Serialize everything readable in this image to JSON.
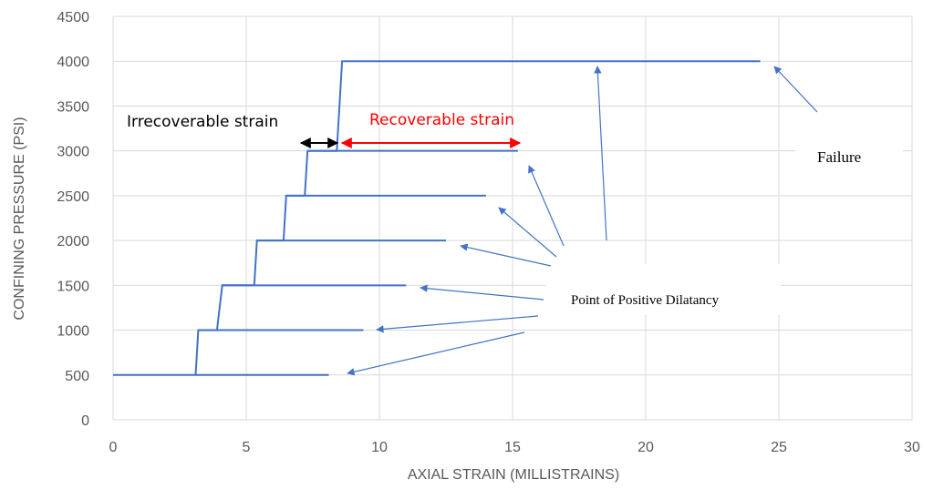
{
  "chart_data": {
    "type": "line",
    "xlabel": "AXIAL STRAIN (MILLISTRAINS)",
    "ylabel": "CONFINING PRESSURE (PSI)",
    "xlim": [
      0,
      30
    ],
    "ylim": [
      0,
      4500
    ],
    "xticks": [
      0,
      5,
      10,
      15,
      20,
      25,
      30
    ],
    "yticks": [
      0,
      500,
      1000,
      1500,
      2000,
      2500,
      3000,
      3500,
      4000,
      4500
    ],
    "grid": true,
    "series_color": "#4472C4",
    "series": [
      {
        "points": [
          [
            0,
            500
          ],
          [
            3.1,
            500
          ],
          [
            3.2,
            1000
          ],
          [
            3.9,
            1000
          ],
          [
            4.1,
            1500
          ],
          [
            5.3,
            1500
          ],
          [
            5.4,
            2000
          ],
          [
            6.4,
            2000
          ],
          [
            6.5,
            2500
          ],
          [
            7.2,
            2500
          ],
          [
            7.3,
            3000
          ],
          [
            8.4,
            3000
          ],
          [
            8.6,
            4000
          ],
          [
            24.3,
            4000
          ]
        ]
      }
    ],
    "unloading_branches": [
      {
        "pressure": 500,
        "from": 3.1,
        "to": 8.1
      },
      {
        "pressure": 1000,
        "from": 3.2,
        "to": 9.4
      },
      {
        "pressure": 1500,
        "from": 4.1,
        "to": 11.0
      },
      {
        "pressure": 2000,
        "from": 5.4,
        "to": 12.5
      },
      {
        "pressure": 2500,
        "from": 6.5,
        "to": 14.0
      },
      {
        "pressure": 3000,
        "from": 7.3,
        "to": 15.2
      }
    ],
    "annotations": {
      "irrecoverable_label": "Irrecoverable strain",
      "recoverable_label": "Recoverable strain",
      "dilatancy_label": "Point of Positive Dilatancy",
      "failure_label": "Failure",
      "irrecoverable_color": "#000000",
      "recoverable_color": "#FF0000",
      "arrow_color": "#4472C4"
    }
  }
}
